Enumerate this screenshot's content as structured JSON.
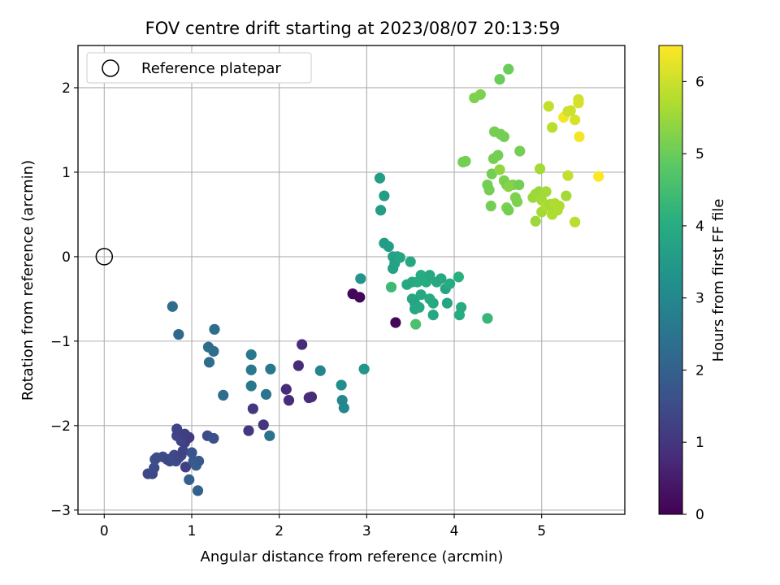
{
  "chart_data": {
    "type": "scatter",
    "title": "FOV centre drift starting at 2023/08/07 20:13:59",
    "xlabel": "Angular distance from reference (arcmin)",
    "ylabel": "Rotation from reference (arcmin)",
    "xlim": [
      -0.3,
      5.95
    ],
    "ylim": [
      -3.05,
      2.5
    ],
    "xticks": [
      0,
      1,
      2,
      3,
      4,
      5
    ],
    "yticks": [
      -3,
      -2,
      -1,
      0,
      1,
      2
    ],
    "grid": true,
    "legend": {
      "placement": "top-left",
      "entries": [
        "Reference platepar"
      ]
    },
    "reference_point": {
      "x": 0,
      "y": 0
    },
    "colorbar": {
      "label": "Hours from first FF file",
      "range": [
        0,
        6.5
      ],
      "ticks": [
        0,
        1,
        2,
        3,
        4,
        5,
        6
      ],
      "colormap": "viridis"
    },
    "series": [
      {
        "points": [
          [
            0.5,
            -2.57,
            1.4
          ],
          [
            0.55,
            -2.57,
            1.4
          ],
          [
            0.57,
            -2.5,
            1.5
          ],
          [
            0.58,
            -2.4,
            1.6
          ],
          [
            0.6,
            -2.38,
            1.5
          ],
          [
            0.67,
            -2.37,
            1.5
          ],
          [
            0.72,
            -2.4,
            1.4
          ],
          [
            0.75,
            -2.42,
            1.4
          ],
          [
            0.78,
            -2.38,
            1.4
          ],
          [
            0.8,
            -2.35,
            1.5
          ],
          [
            0.82,
            -2.42,
            1.5
          ],
          [
            0.85,
            -2.38,
            1.4
          ],
          [
            0.88,
            -2.35,
            1.4
          ],
          [
            0.9,
            -2.3,
            1.3
          ],
          [
            0.92,
            -2.2,
            1.2
          ],
          [
            0.93,
            -2.49,
            1.2
          ],
          [
            0.95,
            -2.15,
            1.1
          ],
          [
            0.97,
            -2.14,
            1.1
          ],
          [
            0.83,
            -2.04,
            1.3
          ],
          [
            0.83,
            -2.12,
            1.3
          ],
          [
            0.88,
            -2.18,
            1.3
          ],
          [
            0.92,
            -2.1,
            1.2
          ],
          [
            1.0,
            -2.32,
            1.7
          ],
          [
            1.02,
            -2.42,
            1.8
          ],
          [
            1.05,
            -2.47,
            1.9
          ],
          [
            1.08,
            -2.42,
            1.8
          ],
          [
            1.18,
            -2.12,
            1.5
          ],
          [
            1.25,
            -2.15,
            1.6
          ],
          [
            0.97,
            -2.64,
            2.0
          ],
          [
            1.07,
            -2.77,
            2.0
          ],
          [
            0.78,
            -0.59,
            2.3
          ],
          [
            0.85,
            -0.92,
            2.2
          ],
          [
            1.19,
            -1.07,
            2.3
          ],
          [
            1.2,
            -1.25,
            2.3
          ],
          [
            1.25,
            -1.12,
            2.3
          ],
          [
            1.26,
            -0.86,
            2.3
          ],
          [
            1.36,
            -1.64,
            2.3
          ],
          [
            1.65,
            -2.06,
            1.0
          ],
          [
            1.7,
            -1.8,
            1.0
          ],
          [
            1.82,
            -1.99,
            1.0
          ],
          [
            1.89,
            -2.12,
            2.4
          ],
          [
            1.68,
            -1.16,
            2.6
          ],
          [
            1.68,
            -1.34,
            2.6
          ],
          [
            1.68,
            -1.53,
            2.6
          ],
          [
            1.85,
            -1.63,
            2.5
          ],
          [
            1.9,
            -1.33,
            2.6
          ],
          [
            2.08,
            -1.57,
            0.8
          ],
          [
            2.11,
            -1.7,
            0.8
          ],
          [
            2.22,
            -1.29,
            0.8
          ],
          [
            2.26,
            -1.04,
            0.8
          ],
          [
            2.34,
            -1.67,
            0.8
          ],
          [
            2.37,
            -1.66,
            0.8
          ],
          [
            2.47,
            -1.35,
            2.9
          ],
          [
            2.71,
            -1.52,
            3.2
          ],
          [
            2.72,
            -1.7,
            3.0
          ],
          [
            2.74,
            -1.79,
            3.0
          ],
          [
            2.97,
            -1.33,
            3.4
          ],
          [
            2.84,
            -0.44,
            0.1
          ],
          [
            2.92,
            -0.48,
            0.1
          ],
          [
            3.33,
            -0.78,
            0.1
          ],
          [
            2.93,
            -0.26,
            3.4
          ],
          [
            3.15,
            0.93,
            3.6
          ],
          [
            3.16,
            0.55,
            3.6
          ],
          [
            3.2,
            0.72,
            3.6
          ],
          [
            3.2,
            0.16,
            3.6
          ],
          [
            3.25,
            0.12,
            3.6
          ],
          [
            3.3,
            0.0,
            3.7
          ],
          [
            3.32,
            -0.08,
            3.7
          ],
          [
            3.3,
            -0.14,
            3.7
          ],
          [
            3.35,
            0.0,
            3.7
          ],
          [
            3.38,
            -0.01,
            3.8
          ],
          [
            3.28,
            -0.36,
            4.4
          ],
          [
            3.46,
            -0.33,
            3.9
          ],
          [
            3.5,
            -0.06,
            3.9
          ],
          [
            3.52,
            -0.3,
            3.9
          ],
          [
            3.52,
            -0.5,
            3.9
          ],
          [
            3.55,
            -0.55,
            3.8
          ],
          [
            3.55,
            -0.62,
            3.8
          ],
          [
            3.6,
            -0.6,
            3.9
          ],
          [
            3.62,
            -0.45,
            3.9
          ],
          [
            3.58,
            -0.3,
            4.0
          ],
          [
            3.62,
            -0.22,
            4.0
          ],
          [
            3.68,
            -0.3,
            4.0
          ],
          [
            3.72,
            -0.22,
            3.9
          ],
          [
            3.72,
            -0.5,
            4.0
          ],
          [
            3.76,
            -0.55,
            3.9
          ],
          [
            3.76,
            -0.69,
            3.9
          ],
          [
            3.8,
            -0.3,
            3.9
          ],
          [
            3.85,
            -0.26,
            3.9
          ],
          [
            3.9,
            -0.38,
            3.8
          ],
          [
            3.92,
            -0.55,
            3.8
          ],
          [
            3.95,
            -0.32,
            4.0
          ],
          [
            4.05,
            -0.24,
            4.1
          ],
          [
            4.06,
            -0.69,
            4.0
          ],
          [
            4.08,
            -0.6,
            4.0
          ],
          [
            4.38,
            -0.73,
            4.3
          ],
          [
            3.56,
            -0.8,
            4.6
          ],
          [
            4.1,
            1.12,
            5.1
          ],
          [
            4.13,
            1.13,
            5.1
          ],
          [
            4.23,
            1.88,
            5.2
          ],
          [
            4.3,
            1.92,
            5.2
          ],
          [
            4.38,
            0.85,
            5.1
          ],
          [
            4.4,
            0.79,
            5.1
          ],
          [
            4.42,
            0.6,
            5.1
          ],
          [
            4.43,
            0.98,
            5.1
          ],
          [
            4.45,
            1.16,
            5.1
          ],
          [
            4.46,
            1.48,
            5.1
          ],
          [
            4.5,
            1.2,
            5.1
          ],
          [
            4.52,
            2.1,
            5.0
          ],
          [
            4.53,
            1.45,
            5.1
          ],
          [
            4.57,
            1.42,
            5.1
          ],
          [
            4.52,
            1.03,
            5.4
          ],
          [
            4.57,
            0.9,
            5.2
          ],
          [
            4.6,
            0.85,
            5.1
          ],
          [
            4.6,
            0.58,
            5.2
          ],
          [
            4.62,
            2.22,
            5.0
          ],
          [
            4.62,
            0.55,
            5.1
          ],
          [
            4.67,
            0.85,
            5.2
          ],
          [
            4.7,
            0.7,
            5.2
          ],
          [
            4.72,
            0.65,
            5.2
          ],
          [
            4.74,
            0.85,
            5.1
          ],
          [
            4.75,
            1.25,
            5.1
          ],
          [
            4.9,
            0.7,
            5.5
          ],
          [
            4.93,
            0.42,
            5.5
          ],
          [
            4.93,
            0.74,
            5.5
          ],
          [
            4.97,
            0.77,
            5.5
          ],
          [
            4.98,
            1.04,
            5.6
          ],
          [
            5.0,
            0.67,
            5.6
          ],
          [
            5.0,
            0.53,
            5.6
          ],
          [
            5.05,
            0.77,
            5.6
          ],
          [
            5.05,
            0.6,
            5.7
          ],
          [
            5.08,
            1.78,
            5.9
          ],
          [
            5.1,
            0.62,
            5.6
          ],
          [
            5.12,
            1.53,
            5.8
          ],
          [
            5.12,
            0.5,
            5.7
          ],
          [
            5.15,
            0.63,
            5.7
          ],
          [
            5.18,
            0.55,
            5.7
          ],
          [
            5.2,
            0.6,
            5.7
          ],
          [
            5.25,
            1.65,
            6.4
          ],
          [
            5.3,
            1.72,
            6.0
          ],
          [
            5.28,
            0.72,
            5.6
          ],
          [
            5.3,
            0.96,
            5.9
          ],
          [
            5.33,
            1.73,
            6.0
          ],
          [
            5.38,
            1.62,
            6.1
          ],
          [
            5.38,
            0.41,
            5.8
          ],
          [
            5.42,
            1.86,
            6.0
          ],
          [
            5.42,
            1.82,
            6.1
          ],
          [
            5.43,
            1.42,
            6.4
          ],
          [
            5.65,
            0.95,
            6.5
          ],
          [
            4.62,
            0.83,
            5.3
          ]
        ]
      }
    ]
  }
}
